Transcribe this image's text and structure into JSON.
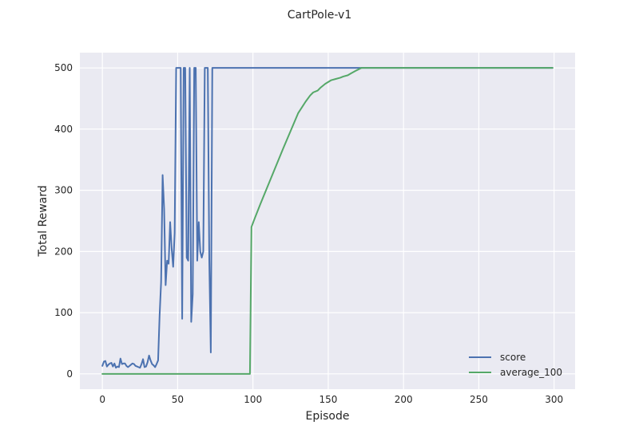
{
  "chart_data": {
    "type": "line",
    "title": "CartPole-v1",
    "xlabel": "Episode",
    "ylabel": "Total Reward",
    "xlim": [
      -14.95,
      313.95
    ],
    "ylim": [
      -25,
      525
    ],
    "xticks": [
      0,
      50,
      100,
      150,
      200,
      250,
      300
    ],
    "yticks": [
      0,
      100,
      200,
      300,
      400,
      500
    ],
    "grid": true,
    "legend_position": "lower-right",
    "series": [
      {
        "name": "score",
        "color": "#4c72b0",
        "x": [
          0,
          1,
          2,
          3,
          4,
          5,
          6,
          7,
          8,
          9,
          10,
          11,
          12,
          13,
          14,
          15,
          16,
          17,
          18,
          19,
          20,
          21,
          22,
          23,
          24,
          25,
          26,
          27,
          28,
          29,
          30,
          31,
          32,
          33,
          34,
          35,
          36,
          37,
          38,
          39,
          40,
          41,
          42,
          43,
          44,
          45,
          46,
          47,
          48,
          49,
          50,
          51,
          52,
          53,
          54,
          55,
          56,
          57,
          58,
          59,
          60,
          61,
          62,
          63,
          64,
          65,
          66,
          67,
          68,
          69,
          70,
          71,
          72,
          73,
          74,
          75,
          299
        ],
        "y": [
          13,
          20,
          21,
          12,
          15,
          17,
          18,
          12,
          17,
          10,
          12,
          11,
          25,
          16,
          17,
          17,
          13,
          11,
          13,
          15,
          17,
          16,
          13,
          12,
          11,
          10,
          16,
          24,
          11,
          12,
          19,
          30,
          22,
          16,
          14,
          11,
          16,
          22,
          95,
          150,
          325,
          270,
          145,
          185,
          180,
          248,
          205,
          175,
          230,
          500,
          500,
          500,
          500,
          90,
          500,
          500,
          190,
          185,
          500,
          85,
          130,
          500,
          500,
          185,
          248,
          200,
          190,
          200,
          500,
          500,
          500,
          185,
          35,
          500,
          500,
          500,
          500
        ]
      },
      {
        "name": "average_100",
        "color": "#55a868",
        "x": [
          0,
          98,
          99,
          101,
          105,
          110,
          115,
          120,
          125,
          130,
          135,
          138,
          140,
          143,
          145,
          148,
          152,
          155,
          158,
          160,
          163,
          165,
          168,
          172,
          175,
          299
        ],
        "y": [
          0,
          0,
          240,
          253,
          278,
          308,
          338,
          368,
          397,
          426,
          445,
          455,
          460,
          463,
          468,
          474,
          480,
          482,
          484,
          486,
          488,
          491,
          495,
          500,
          500,
          500
        ]
      }
    ]
  }
}
